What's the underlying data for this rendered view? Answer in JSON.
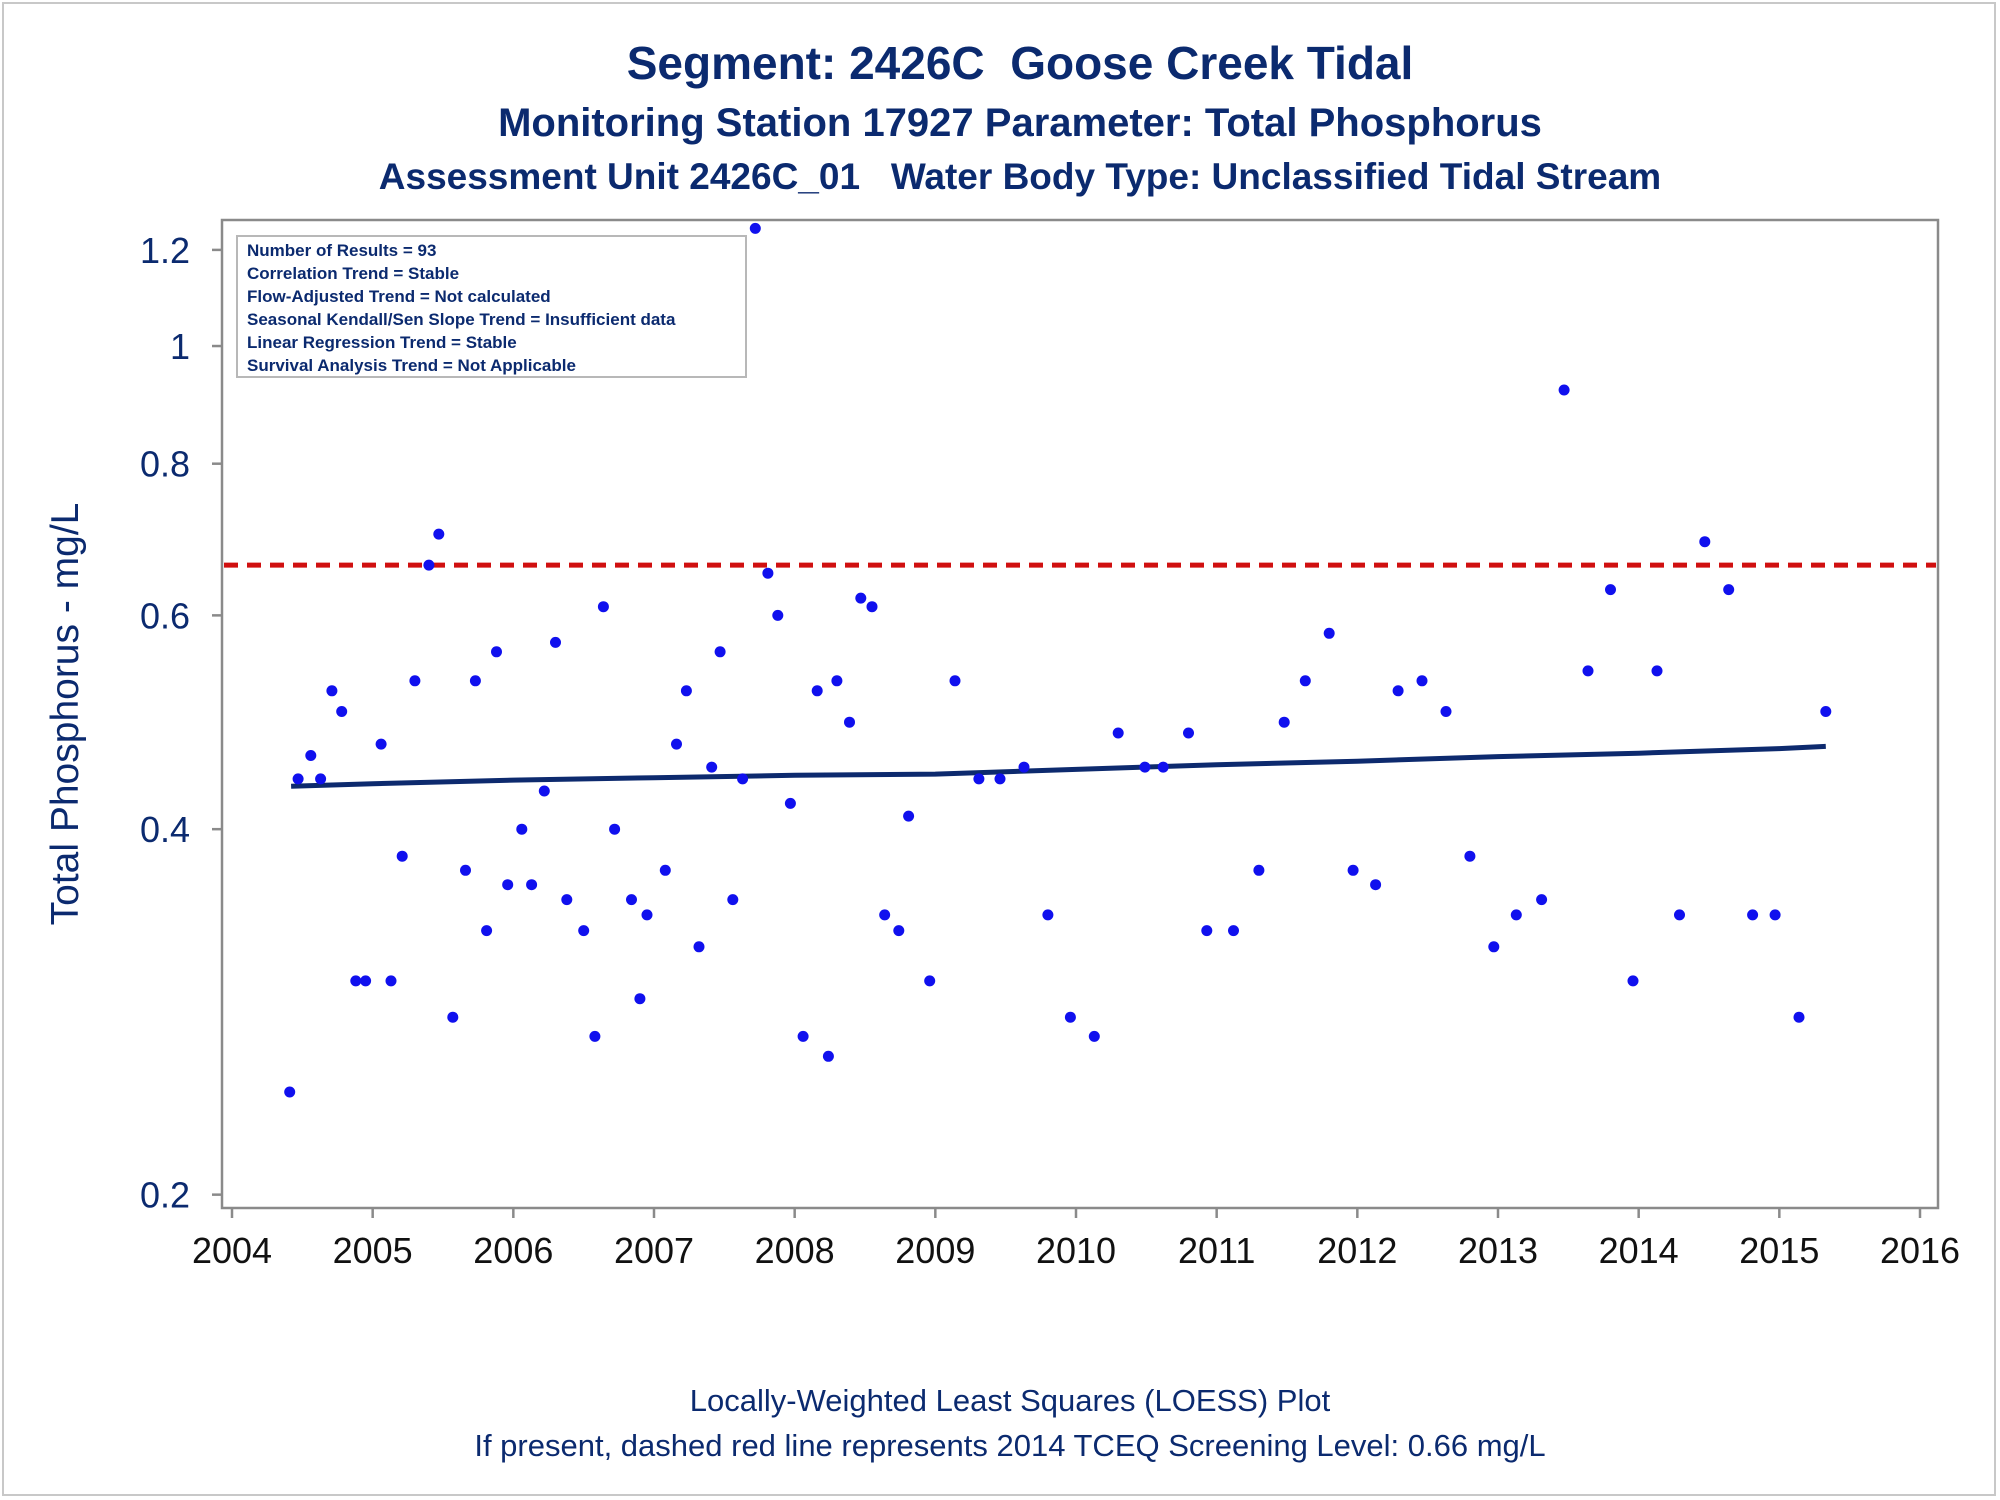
{
  "titles": {
    "line1": "Segment: 2426C  Goose Creek Tidal",
    "line2": "Monitoring Station 17927 Parameter: Total Phosphorus",
    "line3": "Assessment Unit 2426C_01   Water Body Type: Unclassified Tidal Stream"
  },
  "footnotes": {
    "line1": "Locally-Weighted Least Squares (LOESS) Plot",
    "line2": "If present, dashed red line represents 2014 TCEQ Screening Level: 0.66 mg/L"
  },
  "colors": {
    "text": "#0b2a6f",
    "points": "#1010ee",
    "loess": "#0d2a6e",
    "screening": "#d01010",
    "axis": "#8a8a8a"
  },
  "chart_data": {
    "type": "scatter",
    "ylabel": "Total Phosphorus - mg/L",
    "xlabel": "",
    "y_scale": "log",
    "xlim": [
      2004,
      2016
    ],
    "ylim": [
      0.195,
      1.27
    ],
    "x_ticks": [
      "2004",
      "2005",
      "2006",
      "2007",
      "2008",
      "2009",
      "2010",
      "2011",
      "2012",
      "2013",
      "2014",
      "2015",
      "2016"
    ],
    "y_ticks": [
      {
        "value": 0.2,
        "label": "0.2"
      },
      {
        "value": 0.4,
        "label": "0.4"
      },
      {
        "value": 0.6,
        "label": "0.6"
      },
      {
        "value": 0.8,
        "label": "0.8"
      },
      {
        "value": 1.0,
        "label": "1"
      },
      {
        "value": 1.2,
        "label": "1.2"
      }
    ],
    "legend_box": [
      "Number of Results = 93",
      "Correlation Trend = Stable",
      "Flow-Adjusted Trend = Not calculated",
      "Seasonal Kendall/Sen Slope Trend = Insufficient data",
      "Linear Regression Trend = Stable",
      "Survival Analysis Trend = Not Applicable"
    ],
    "screening_level": 0.66,
    "loess": [
      [
        2004.42,
        0.434
      ],
      [
        2005.0,
        0.436
      ],
      [
        2006.0,
        0.439
      ],
      [
        2007.0,
        0.441
      ],
      [
        2008.0,
        0.443
      ],
      [
        2009.0,
        0.444
      ],
      [
        2010.0,
        0.448
      ],
      [
        2011.0,
        0.452
      ],
      [
        2012.0,
        0.455
      ],
      [
        2013.0,
        0.459
      ],
      [
        2014.0,
        0.462
      ],
      [
        2015.0,
        0.466
      ],
      [
        2015.33,
        0.468
      ]
    ],
    "points": [
      [
        2004.41,
        0.243
      ],
      [
        2004.47,
        0.44
      ],
      [
        2004.56,
        0.46
      ],
      [
        2004.63,
        0.44
      ],
      [
        2004.71,
        0.52
      ],
      [
        2004.78,
        0.5
      ],
      [
        2004.88,
        0.3
      ],
      [
        2004.95,
        0.3
      ],
      [
        2005.06,
        0.47
      ],
      [
        2005.13,
        0.3
      ],
      [
        2005.21,
        0.38
      ],
      [
        2005.3,
        0.53
      ],
      [
        2005.4,
        0.66
      ],
      [
        2005.47,
        0.7
      ],
      [
        2005.57,
        0.28
      ],
      [
        2005.66,
        0.37
      ],
      [
        2005.73,
        0.53
      ],
      [
        2005.81,
        0.33
      ],
      [
        2005.88,
        0.56
      ],
      [
        2005.96,
        0.36
      ],
      [
        2006.06,
        0.4
      ],
      [
        2006.13,
        0.36
      ],
      [
        2006.22,
        0.43
      ],
      [
        2006.3,
        0.57
      ],
      [
        2006.38,
        0.35
      ],
      [
        2006.5,
        0.33
      ],
      [
        2006.58,
        0.27
      ],
      [
        2006.64,
        0.61
      ],
      [
        2006.72,
        0.4
      ],
      [
        2006.84,
        0.35
      ],
      [
        2006.9,
        0.29
      ],
      [
        2006.95,
        0.34
      ],
      [
        2007.08,
        0.37
      ],
      [
        2007.16,
        0.47
      ],
      [
        2007.23,
        0.52
      ],
      [
        2007.32,
        0.32
      ],
      [
        2007.41,
        0.45
      ],
      [
        2007.47,
        0.56
      ],
      [
        2007.56,
        0.35
      ],
      [
        2007.63,
        0.44
      ],
      [
        2007.72,
        1.25
      ],
      [
        2007.81,
        0.65
      ],
      [
        2007.88,
        0.6
      ],
      [
        2007.97,
        0.42
      ],
      [
        2008.06,
        0.27
      ],
      [
        2008.16,
        0.52
      ],
      [
        2008.24,
        0.26
      ],
      [
        2008.3,
        0.53
      ],
      [
        2008.39,
        0.49
      ],
      [
        2008.47,
        0.62
      ],
      [
        2008.55,
        0.61
      ],
      [
        2008.64,
        0.34
      ],
      [
        2008.74,
        0.33
      ],
      [
        2008.81,
        0.41
      ],
      [
        2008.96,
        0.3
      ],
      [
        2009.14,
        0.53
      ],
      [
        2009.31,
        0.44
      ],
      [
        2009.46,
        0.44
      ],
      [
        2009.63,
        0.45
      ],
      [
        2009.8,
        0.34
      ],
      [
        2009.96,
        0.28
      ],
      [
        2010.13,
        0.27
      ],
      [
        2010.3,
        0.48
      ],
      [
        2010.49,
        0.45
      ],
      [
        2010.62,
        0.45
      ],
      [
        2010.8,
        0.48
      ],
      [
        2010.93,
        0.33
      ],
      [
        2011.12,
        0.33
      ],
      [
        2011.3,
        0.37
      ],
      [
        2011.48,
        0.49
      ],
      [
        2011.63,
        0.53
      ],
      [
        2011.8,
        0.58
      ],
      [
        2011.97,
        0.37
      ],
      [
        2012.13,
        0.36
      ],
      [
        2012.29,
        0.52
      ],
      [
        2012.46,
        0.53
      ],
      [
        2012.63,
        0.5
      ],
      [
        2012.8,
        0.38
      ],
      [
        2012.97,
        0.32
      ],
      [
        2013.13,
        0.34
      ],
      [
        2013.31,
        0.35
      ],
      [
        2013.47,
        0.92
      ],
      [
        2013.64,
        0.54
      ],
      [
        2013.8,
        0.63
      ],
      [
        2013.96,
        0.3
      ],
      [
        2014.13,
        0.54
      ],
      [
        2014.29,
        0.34
      ],
      [
        2014.47,
        0.69
      ],
      [
        2014.64,
        0.63
      ],
      [
        2014.81,
        0.34
      ],
      [
        2014.97,
        0.34
      ],
      [
        2015.14,
        0.28
      ],
      [
        2015.33,
        0.5
      ]
    ]
  }
}
